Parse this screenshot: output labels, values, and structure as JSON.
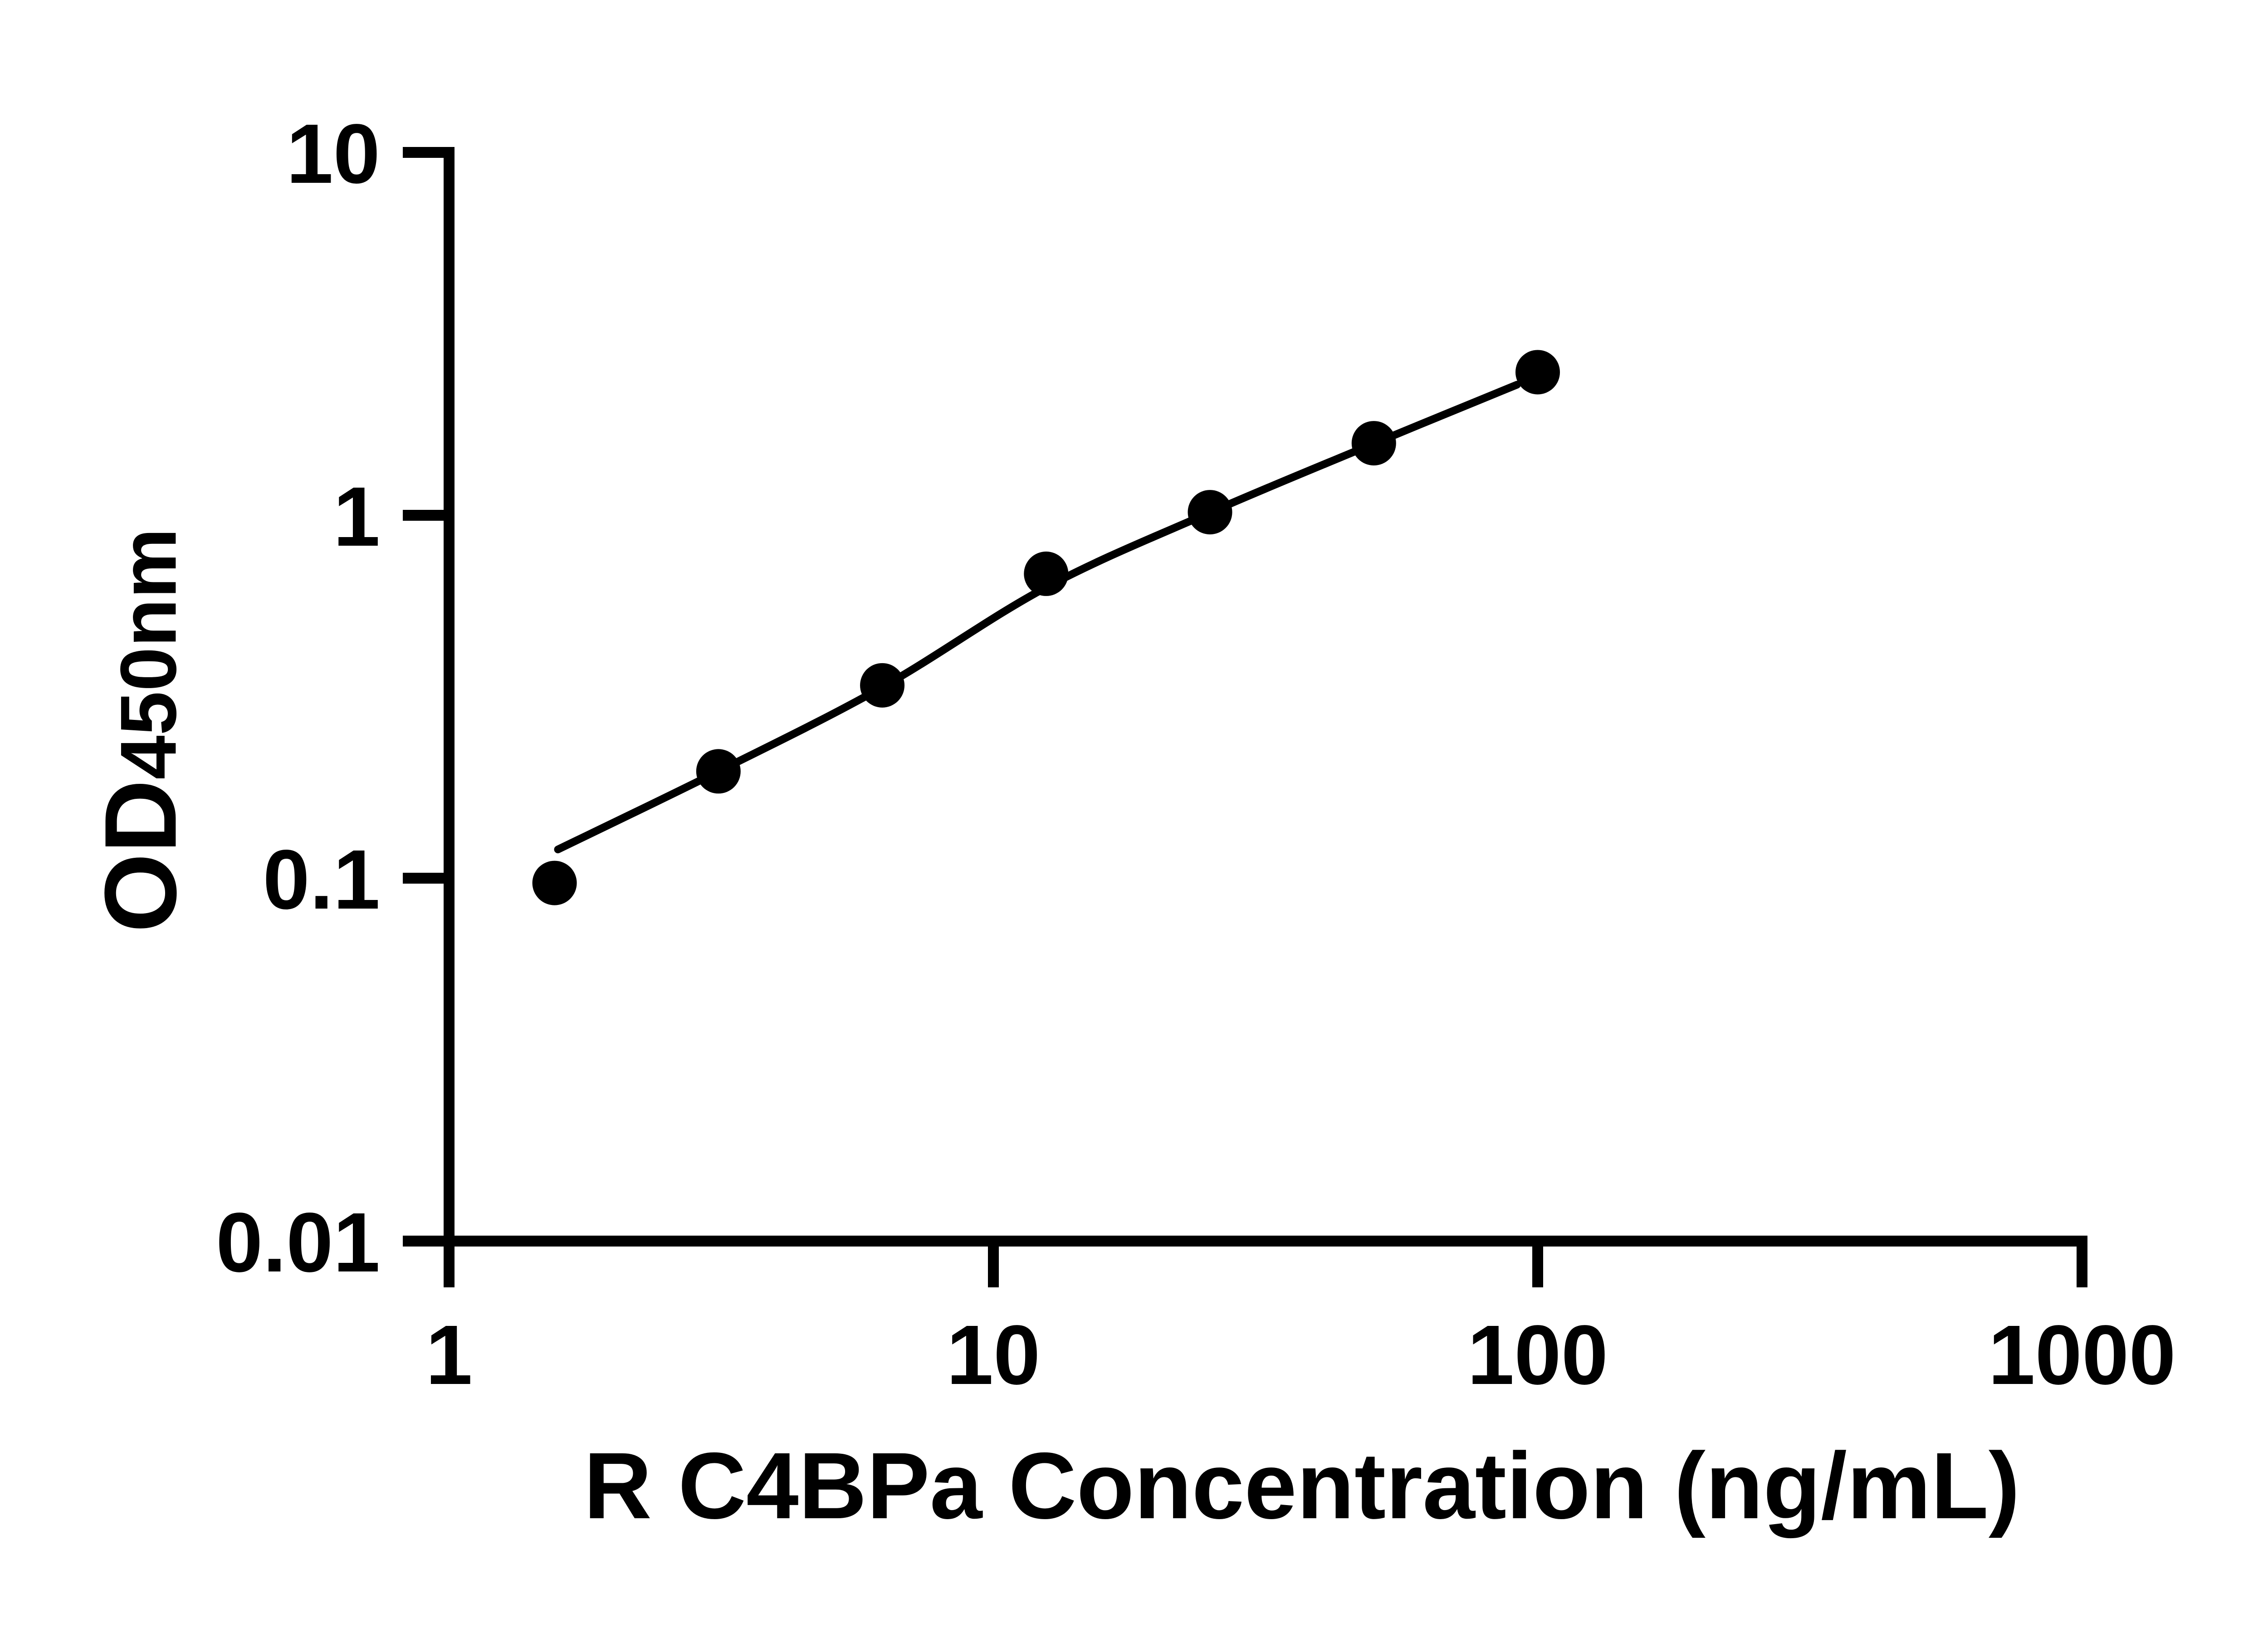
{
  "figure": {
    "background": "#ffffff",
    "foreground": "#000000"
  },
  "chart_data": {
    "type": "scatter",
    "title": "",
    "xlabel": "R C4BPa Concentration (ng/mL)",
    "ylabel": "OD450nm",
    "ylabel_main": "OD",
    "ylabel_sub": "450nm",
    "x_scale": "log",
    "y_scale": "log",
    "xlim": [
      1,
      1000
    ],
    "ylim": [
      0.01,
      10
    ],
    "grid": false,
    "legend": "none",
    "x_ticks": [
      "1",
      "10",
      "100",
      "1000"
    ],
    "x_tick_values": [
      1,
      10,
      100,
      1000
    ],
    "y_ticks": [
      "10",
      "1",
      "0.1",
      "0.01"
    ],
    "y_tick_values": [
      10,
      1,
      0.1,
      0.01
    ],
    "series": [
      {
        "name": "standards",
        "marker": "filled-circle",
        "marker_color": "#000000",
        "x": [
          1.5625,
          3.125,
          6.25,
          12.5,
          25,
          50,
          100
        ],
        "y": [
          0.097,
          0.197,
          0.34,
          0.69,
          1.02,
          1.58,
          2.48
        ]
      }
    ],
    "fit_line": {
      "name": "standard-curve-fit",
      "color": "#000000",
      "x": [
        1.585,
        3.125,
        6.25,
        12.5,
        25,
        50,
        91.6
      ],
      "y": [
        0.12,
        0.197,
        0.336,
        0.633,
        1.018,
        1.576,
        2.29
      ]
    }
  }
}
